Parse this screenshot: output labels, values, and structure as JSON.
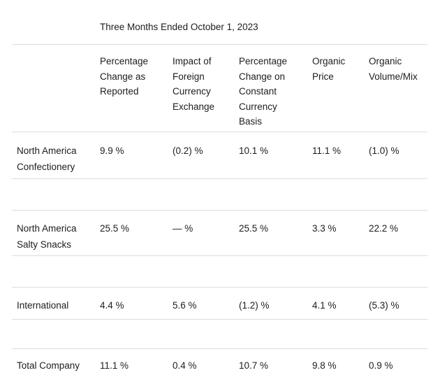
{
  "title": "Three Months Ended October 1, 2023",
  "colors": {
    "text": "#1d1d1f",
    "rule_line": "#dcdcdc",
    "background": "#ffffff"
  },
  "table": {
    "columns": [
      {
        "label": ""
      },
      {
        "label": "Percentage\nChange as\nReported"
      },
      {
        "label": "Impact of\nForeign\nCurrency\nExchange"
      },
      {
        "label": "Percentage\nChange on\nConstant\nCurrency\nBasis"
      },
      {
        "label": "Organic\nPrice"
      },
      {
        "label": "Organic\nVolume/Mix"
      }
    ],
    "rows": [
      {
        "label": "North America\nConfectionery",
        "values": [
          "9.9 %",
          "(0.2) %",
          "10.1 %",
          "11.1 %",
          "(1.0) %"
        ]
      },
      {
        "label": "North America\nSalty Snacks",
        "values": [
          "25.5 %",
          "— %",
          "25.5 %",
          "3.3 %",
          "22.2 %"
        ]
      },
      {
        "label": "International",
        "values": [
          "4.4 %",
          "5.6 %",
          "(1.2) %",
          "4.1 %",
          "(5.3) %"
        ]
      },
      {
        "label": "Total Company",
        "values": [
          "11.1 %",
          "0.4 %",
          "10.7 %",
          "9.8 %",
          "0.9 %"
        ]
      }
    ]
  }
}
